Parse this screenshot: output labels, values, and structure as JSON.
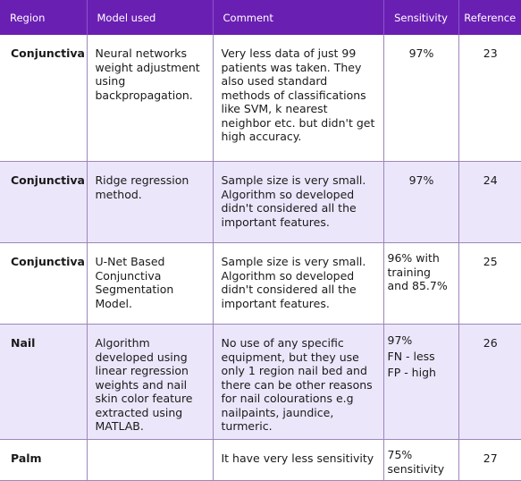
{
  "table": {
    "headers": [
      "Region",
      "Model used",
      "Comment",
      "Sensitivity",
      "Reference"
    ],
    "rows": [
      {
        "region": "Conjunctiva",
        "model": "Neural networks weight adjustment using backpropagation.",
        "comment": "Very less data of just 99 patients was taken. They also used standard methods of classifications like SVM, k nearest neighbor etc. but didn't get high accuracy.",
        "sensitivity": [
          "97%"
        ],
        "reference": "23"
      },
      {
        "region": "Conjunctiva",
        "model": "Ridge regression method.",
        "comment": "Sample size is very small. Algorithm so developed didn't considered all the important features.",
        "sensitivity": [
          "97%"
        ],
        "reference": "24"
      },
      {
        "region": "Conjunctiva",
        "model": "U-Net Based Conjunctiva Segmentation Model.",
        "comment": "Sample size is very small. Algorithm so developed didn't considered all the important features.",
        "sensitivity": [
          "96% with training",
          "and 85.7%"
        ],
        "reference": "25"
      },
      {
        "region": "Nail",
        "model": "Algorithm developed using linear regression weights and nail skin color feature extracted using MATLAB.",
        "comment": "No use of any specific equipment, but they use only 1 region nail bed and there can be other reasons for nail colourations e.g nailpaints, jaundice, turmeric.",
        "sensitivity": [
          "97%",
          "FN - less",
          "FP - high"
        ],
        "reference": "26"
      },
      {
        "region": "Palm",
        "model": "",
        "comment": "It have very less sensitivity",
        "sensitivity": [
          "75%",
          "sensitivity"
        ],
        "reference": "27"
      }
    ]
  },
  "colors": {
    "header_bg": "#6a1fb3",
    "header_text": "#ffffff",
    "alt_row_bg": "#ece6fb",
    "grid_line": "#9d86b8"
  }
}
